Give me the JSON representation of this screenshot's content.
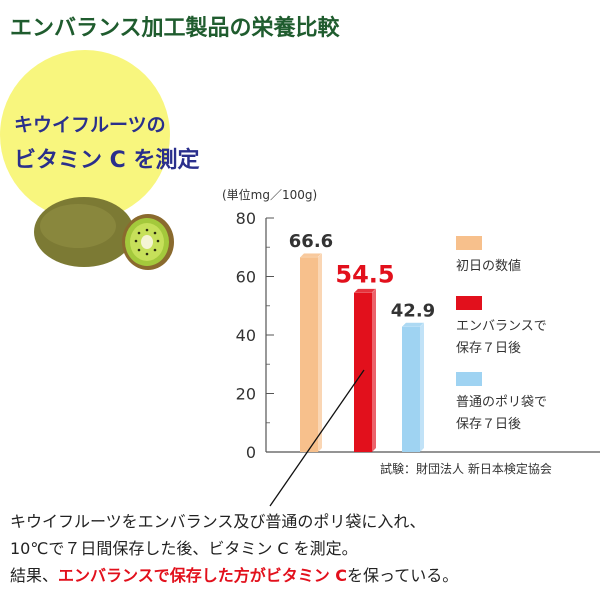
{
  "title": "エンバランス加工製品の栄養比較",
  "headline": {
    "line1": "キウイフルーツの",
    "line2": "ビタミン C を測定"
  },
  "unit_label": "(単位mg／100g)",
  "source_note": "試験：財団法人 新日本検定協会",
  "caption": {
    "line1": "キウイフルーツをエンバランス及び普通のポリ袋に入れ、",
    "line2": "10℃で７日間保存した後、ビタミン C を測定。",
    "line3_prefix": "結果、",
    "line3_highlight": "エンバランスで保存した方がビタミン C",
    "line3_suffix": "を保っている。"
  },
  "chart_data": {
    "type": "bar",
    "ylim": [
      0,
      80
    ],
    "yticks": [
      0,
      20,
      40,
      60,
      80
    ],
    "series": [
      {
        "name": "初日の数値",
        "value": 66.6,
        "value_label": "66.6",
        "color": "#f7c08c"
      },
      {
        "name": "エンバランスで\n保存７日後",
        "value": 54.5,
        "value_label": "54.5",
        "color": "#e2101c"
      },
      {
        "name": "普通のポリ袋で\n保存７日後",
        "value": 42.9,
        "value_label": "42.9",
        "color": "#9fd3f2"
      }
    ],
    "highlight_color": "#e2101c"
  }
}
